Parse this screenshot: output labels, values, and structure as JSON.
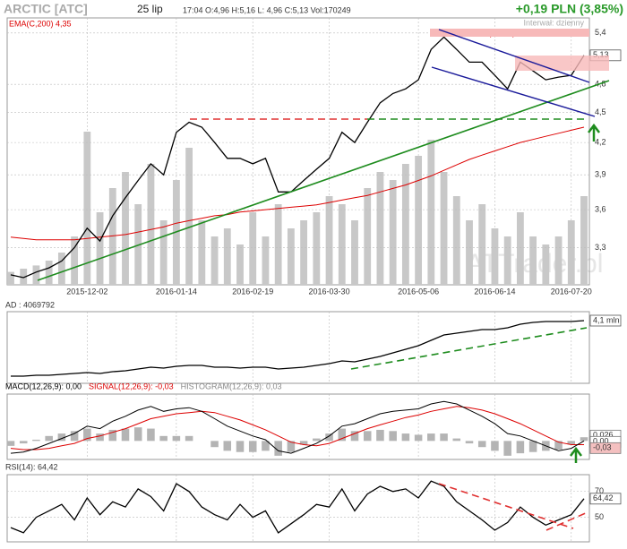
{
  "header": {
    "ticker": "ARCTIC [ATC]",
    "date": "25 lip",
    "quote": "17:04 O:4,96 H:5,16 L: 4,96 C:5,13 Vol:170249",
    "change": "+0,19 PLN (3,85%)",
    "interval": "Interwał: dzienny",
    "watermark": "ATTrader.pl"
  },
  "chart_data": [
    {
      "type": "line",
      "log": true,
      "color": "#000000",
      "categories": [
        null,
        null,
        null,
        null,
        null,
        null,
        "2015-12-02",
        null,
        null,
        null,
        null,
        null,
        null,
        "2016-01-14",
        null,
        null,
        null,
        null,
        null,
        "2016-02-19",
        null,
        null,
        null,
        null,
        null,
        "2016-03-30",
        null,
        null,
        null,
        null,
        null,
        null,
        "2016-05-06",
        null,
        null,
        null,
        null,
        null,
        "2016-06-14",
        null,
        null,
        null,
        null,
        null,
        "2016-07-20",
        null
      ],
      "values": [
        3.1,
        3.08,
        3.12,
        3.15,
        3.2,
        3.3,
        3.45,
        3.35,
        3.55,
        3.7,
        3.85,
        4.0,
        3.9,
        4.3,
        4.4,
        4.35,
        4.2,
        4.05,
        4.05,
        4.0,
        4.05,
        3.75,
        3.75,
        3.85,
        3.95,
        4.05,
        4.3,
        4.2,
        4.4,
        4.6,
        4.7,
        4.75,
        4.85,
        5.2,
        5.35,
        5.2,
        5.05,
        5.05,
        4.9,
        4.75,
        5.05,
        4.95,
        4.85,
        4.88,
        4.9,
        5.13
      ],
      "ema": {
        "label": "EMA(C,200) 4,35",
        "color": "#dd0000",
        "values": [
          3.38,
          3.37,
          3.36,
          3.36,
          3.36,
          3.36,
          3.37,
          3.38,
          3.39,
          3.4,
          3.42,
          3.44,
          3.46,
          3.49,
          3.51,
          3.53,
          3.55,
          3.56,
          3.58,
          3.59,
          3.6,
          3.61,
          3.62,
          3.63,
          3.64,
          3.66,
          3.68,
          3.7,
          3.72,
          3.75,
          3.78,
          3.81,
          3.85,
          3.89,
          3.94,
          3.99,
          4.04,
          4.08,
          4.12,
          4.16,
          4.2,
          4.23,
          4.26,
          4.29,
          4.32,
          4.35
        ]
      },
      "volume": {
        "color": "#c8c8c8",
        "axis": "y2",
        "values": [
          8,
          10,
          12,
          15,
          20,
          30,
          95,
          45,
          60,
          70,
          50,
          75,
          40,
          65,
          85,
          40,
          30,
          35,
          25,
          45,
          30,
          50,
          35,
          40,
          45,
          55,
          50,
          40,
          60,
          70,
          65,
          75,
          80,
          90,
          70,
          55,
          40,
          50,
          35,
          30,
          45,
          30,
          25,
          30,
          40,
          55
        ]
      },
      "y2lim": [
        0,
        100
      ],
      "ylim": [
        3.03,
        5.59
      ],
      "yticks": [
        {
          "value": 5.4,
          "label": "5,4"
        },
        {
          "value": 4.8,
          "label": "4,8"
        },
        {
          "value": 4.5,
          "label": "4,5"
        },
        {
          "value": 4.2,
          "label": "4,2"
        },
        {
          "value": 3.9,
          "label": "3,9"
        },
        {
          "value": 3.6,
          "label": "3,6"
        },
        {
          "value": 3.3,
          "label": "3,3"
        }
      ],
      "grid": true,
      "annotation": "5,39-5,45",
      "last_label": "5,13"
    },
    {
      "type": "line",
      "title": "AD : 4069792",
      "color": "#000000",
      "ylim": [
        0.6,
        4.6
      ],
      "last_label": "4,1 mln",
      "values": [
        1.0,
        1.0,
        1.05,
        1.05,
        1.1,
        1.15,
        1.2,
        1.15,
        1.25,
        1.3,
        1.4,
        1.5,
        1.45,
        1.55,
        1.6,
        1.6,
        1.5,
        1.5,
        1.45,
        1.5,
        1.5,
        1.4,
        1.45,
        1.5,
        1.6,
        1.7,
        1.85,
        1.8,
        1.95,
        2.1,
        2.3,
        2.5,
        2.7,
        3.0,
        3.3,
        3.4,
        3.5,
        3.6,
        3.6,
        3.7,
        3.9,
        4.0,
        4.05,
        4.05,
        4.05,
        4.1
      ]
    },
    {
      "type": "macd",
      "ylim": [
        -0.15,
        0.38
      ],
      "last_labels": [
        "0,026",
        "0,00",
        "-0,03"
      ],
      "macd": {
        "label": "MACD(12,26,9): 0,00",
        "color": "#000000",
        "values": [
          -0.1,
          -0.09,
          -0.06,
          -0.02,
          0.02,
          0.06,
          0.12,
          0.1,
          0.16,
          0.2,
          0.25,
          0.28,
          0.24,
          0.26,
          0.27,
          0.24,
          0.18,
          0.12,
          0.08,
          0.04,
          0.01,
          -0.08,
          -0.1,
          -0.06,
          -0.02,
          0.04,
          0.12,
          0.14,
          0.18,
          0.22,
          0.24,
          0.25,
          0.26,
          0.3,
          0.32,
          0.3,
          0.25,
          0.2,
          0.14,
          0.06,
          0.04,
          0.0,
          -0.04,
          -0.08,
          -0.06,
          0.0
        ]
      },
      "signal": {
        "label": "SIGNAL(12,26,9): -0,03",
        "color": "#dd0000",
        "values": [
          -0.06,
          -0.07,
          -0.07,
          -0.06,
          -0.04,
          -0.02,
          0.02,
          0.04,
          0.07,
          0.1,
          0.14,
          0.18,
          0.2,
          0.22,
          0.23,
          0.24,
          0.23,
          0.2,
          0.17,
          0.13,
          0.09,
          0.04,
          -0.01,
          -0.03,
          -0.04,
          -0.02,
          0.02,
          0.06,
          0.1,
          0.13,
          0.16,
          0.19,
          0.21,
          0.24,
          0.26,
          0.28,
          0.27,
          0.25,
          0.22,
          0.18,
          0.14,
          0.09,
          0.04,
          -0.01,
          -0.03,
          -0.03
        ]
      },
      "histogram": {
        "label": "HISTOGRAM(12,26,9): 0,03",
        "color": "#b4b4b4",
        "values": [
          -0.04,
          -0.02,
          0.01,
          0.04,
          0.06,
          0.08,
          0.1,
          0.06,
          0.09,
          0.1,
          0.11,
          0.1,
          0.04,
          0.04,
          0.04,
          0.0,
          -0.05,
          -0.08,
          -0.09,
          -0.09,
          -0.08,
          -0.12,
          -0.09,
          -0.03,
          0.02,
          0.06,
          0.1,
          0.08,
          0.08,
          0.09,
          0.08,
          0.06,
          0.05,
          0.06,
          0.06,
          0.02,
          -0.02,
          -0.05,
          -0.08,
          -0.12,
          -0.1,
          -0.09,
          -0.08,
          -0.07,
          -0.03,
          0.03
        ]
      }
    },
    {
      "type": "line",
      "title": "RSI(14): 64,42",
      "color": "#000000",
      "ylim": [
        31,
        83
      ],
      "yticks": [
        70,
        50
      ],
      "grid": true,
      "last_label": "64,42",
      "values": [
        42,
        38,
        50,
        55,
        60,
        48,
        65,
        52,
        62,
        58,
        72,
        66,
        55,
        76,
        70,
        58,
        52,
        48,
        60,
        50,
        55,
        38,
        45,
        52,
        60,
        58,
        72,
        55,
        68,
        74,
        70,
        72,
        65,
        78,
        74,
        62,
        55,
        48,
        40,
        46,
        58,
        50,
        44,
        48,
        52,
        64.42
      ]
    }
  ]
}
